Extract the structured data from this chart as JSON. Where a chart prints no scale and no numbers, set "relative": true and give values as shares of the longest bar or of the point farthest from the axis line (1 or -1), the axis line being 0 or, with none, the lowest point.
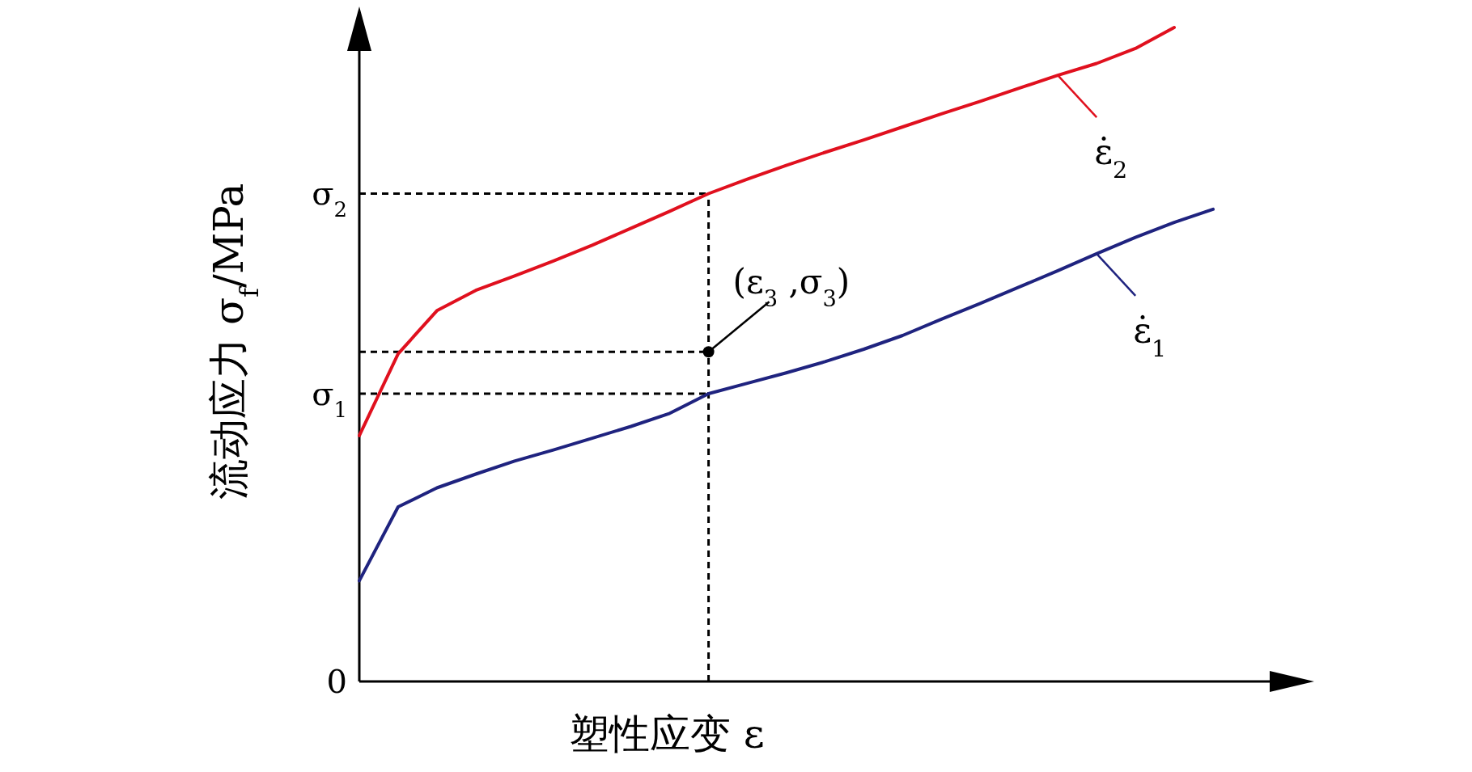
{
  "chart_data": {
    "type": "line",
    "relative": true,
    "xlabel": "塑性应变 ε",
    "ylabel": "流动应力 σ$_{f}$/MPa",
    "categories": [
      null,
      null,
      null,
      null,
      null,
      null,
      null,
      null,
      null,
      null,
      null,
      null,
      null,
      null,
      null,
      null,
      null,
      null,
      null,
      null,
      null,
      null,
      null
    ],
    "series": [
      {
        "name": "ε̇$_{2}$",
        "color": "#e0101e",
        "values": [
          0.376,
          0.501,
          0.567,
          0.598,
          0.62,
          0.643,
          0.667,
          0.693,
          0.719,
          0.746,
          0.768,
          0.789,
          0.809,
          0.828,
          0.848,
          0.868,
          0.887,
          0.907,
          0.927,
          0.945,
          0.968,
          1.0,
          null
        ]
      },
      {
        "name": "ε̇$_{1}$",
        "color": "#1f237f",
        "values": [
          0.154,
          0.267,
          0.296,
          0.317,
          0.337,
          0.354,
          0.372,
          0.39,
          0.41,
          0.44,
          0.456,
          0.472,
          0.489,
          0.508,
          0.529,
          0.554,
          0.578,
          0.603,
          0.628,
          0.654,
          0.679,
          0.702,
          0.722
        ]
      }
    ],
    "ref_lines": [
      {
        "axis": "y",
        "value": 0.746,
        "label": "σ$_{2}$",
        "color": "#000000",
        "line_style": "dashed"
      },
      {
        "axis": "y",
        "value": 0.504,
        "label": null,
        "color": "#000000",
        "line_style": "dashed"
      },
      {
        "axis": "y",
        "value": 0.44,
        "label": "σ$_{1}$",
        "color": "#000000",
        "line_style": "dashed"
      }
    ],
    "legend": "right",
    "annotations": [
      "0",
      "(ε$_{3}$ ,σ$_{3}$)"
    ]
  }
}
